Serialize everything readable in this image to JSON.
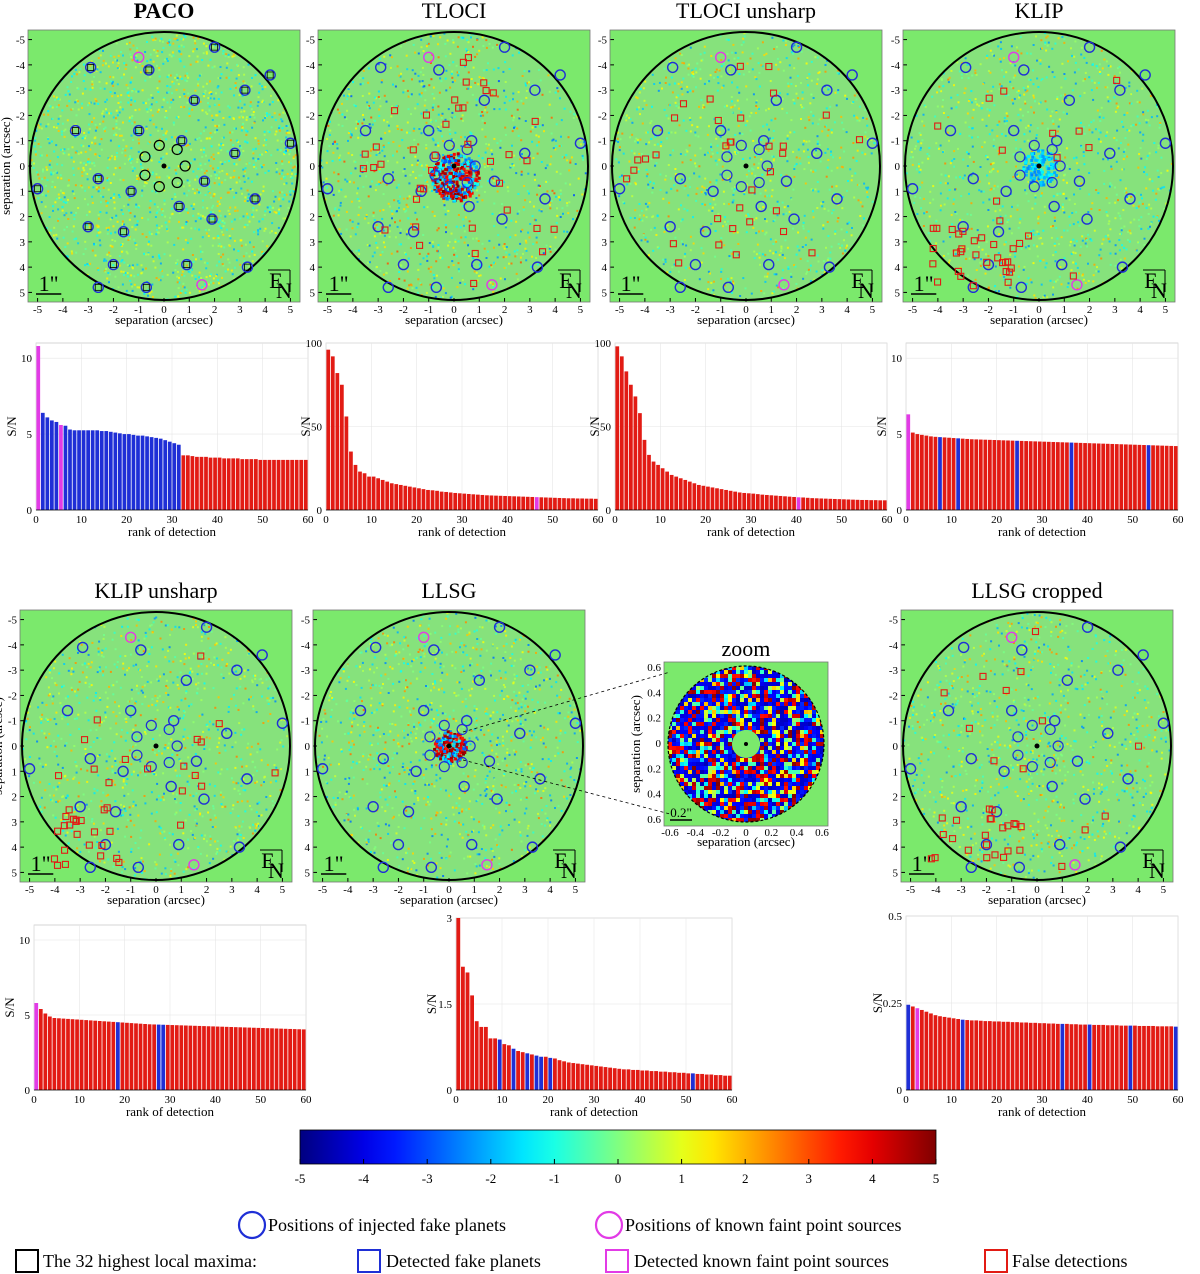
{
  "figure": {
    "legend": {
      "injected": "Positions of injected fake planets",
      "known": "Positions of known faint point sources",
      "maxima": "The 32 highest local maxima:",
      "detected_fake": "Detected fake planets",
      "detected_known": "Detected known faint point sources",
      "false_det": "False detections"
    },
    "colors": {
      "blue": "#1f2fd6",
      "magenta": "#e23be6",
      "red": "#e21b14",
      "map_bg": "#7be96c"
    },
    "zoom": {
      "title": "zoom",
      "scale_label": "0.2\"",
      "ticks": [
        "-0.6",
        "-0.4",
        "-0.2",
        "0",
        "0.2",
        "0.4",
        "0.6"
      ],
      "xlabel": "separation (arcsec)",
      "ylabel": "separation (arcsec)"
    },
    "map_common": {
      "ticks": [
        "-5",
        "-4",
        "-3",
        "-2",
        "-1",
        "0",
        "1",
        "2",
        "3",
        "4",
        "5"
      ],
      "xlabel": "separation (arcsec)",
      "ylabel": "separation (arcsec)",
      "scale_label": "1\"",
      "compass_e": "E",
      "compass_n": "N"
    }
  },
  "chart_data": [
    {
      "type": "image",
      "title": "PACO"
    },
    {
      "type": "image",
      "title": "TLOCI"
    },
    {
      "type": "image",
      "title": "TLOCI unsharp"
    },
    {
      "type": "image",
      "title": "KLIP"
    },
    {
      "type": "image",
      "title": "KLIP unsharp"
    },
    {
      "type": "image",
      "title": "LLSG"
    },
    {
      "type": "image",
      "title": "LLSG cropped"
    },
    {
      "type": "bar",
      "method": "PACO",
      "xlabel": "rank of detection",
      "ylabel": "S/N",
      "ylim": [
        0,
        11
      ],
      "yticks": [
        0,
        5,
        10
      ],
      "xticks": [
        0,
        10,
        20,
        30,
        40,
        50,
        60
      ],
      "values": [
        10.8,
        6.4,
        6.1,
        5.9,
        5.8,
        5.6,
        5.55,
        5.3,
        5.25,
        5.25,
        5.25,
        5.25,
        5.25,
        5.25,
        5.2,
        5.2,
        5.15,
        5.1,
        5.05,
        5.0,
        5.0,
        4.95,
        4.9,
        4.9,
        4.85,
        4.8,
        4.75,
        4.7,
        4.6,
        4.5,
        4.4,
        4.3,
        3.6,
        3.6,
        3.55,
        3.5,
        3.5,
        3.5,
        3.45,
        3.45,
        3.45,
        3.4,
        3.4,
        3.4,
        3.4,
        3.35,
        3.35,
        3.35,
        3.35,
        3.3,
        3.3,
        3.3,
        3.3,
        3.3,
        3.3,
        3.3,
        3.3,
        3.3,
        3.3,
        3.3
      ],
      "colors": [
        "m",
        "b",
        "b",
        "b",
        "b",
        "m",
        "b",
        "b",
        "b",
        "b",
        "b",
        "b",
        "b",
        "b",
        "b",
        "b",
        "b",
        "b",
        "b",
        "b",
        "b",
        "b",
        "b",
        "b",
        "b",
        "b",
        "b",
        "b",
        "b",
        "b",
        "b",
        "b",
        "r",
        "r",
        "r",
        "r",
        "r",
        "r",
        "r",
        "r",
        "r",
        "r",
        "r",
        "r",
        "r",
        "r",
        "r",
        "r",
        "r",
        "r",
        "r",
        "r",
        "r",
        "r",
        "r",
        "r",
        "r",
        "r",
        "r",
        "r"
      ]
    },
    {
      "type": "bar",
      "method": "TLOCI",
      "xlabel": "rank of detection",
      "ylabel": "S/N",
      "ylim": [
        0,
        100
      ],
      "yticks": [
        0,
        50,
        100
      ],
      "xticks": [
        0,
        10,
        20,
        30,
        40,
        50,
        60
      ],
      "values": [
        96,
        92,
        82,
        75,
        56,
        35,
        27,
        23,
        22,
        20,
        20,
        19,
        18,
        17,
        16,
        15.5,
        15,
        14.5,
        14,
        13.5,
        13,
        12.5,
        12,
        11.8,
        11.5,
        11,
        10.8,
        10.5,
        10.2,
        10,
        9.8,
        9.6,
        9.4,
        9.2,
        9,
        8.8,
        8.7,
        8.6,
        8.5,
        8.4,
        8.3,
        8.2,
        8.1,
        8,
        7.9,
        7.8,
        7.7,
        7.6,
        7.5,
        7.4,
        7.3,
        7.2,
        7.1,
        7.0,
        7.0,
        6.9,
        6.9,
        6.8,
        6.8,
        6.7
      ],
      "colors": [
        "r",
        "r",
        "r",
        "r",
        "r",
        "r",
        "r",
        "r",
        "r",
        "r",
        "r",
        "r",
        "r",
        "r",
        "r",
        "r",
        "r",
        "r",
        "r",
        "r",
        "r",
        "r",
        "r",
        "r",
        "r",
        "r",
        "r",
        "r",
        "r",
        "r",
        "r",
        "r",
        "r",
        "r",
        "r",
        "r",
        "r",
        "r",
        "r",
        "r",
        "r",
        "r",
        "r",
        "r",
        "r",
        "r",
        "m",
        "r",
        "r",
        "r",
        "r",
        "r",
        "r",
        "r",
        "r",
        "r",
        "r",
        "r",
        "r",
        "r"
      ]
    },
    {
      "type": "bar",
      "method": "TLOCI unsharp",
      "xlabel": "rank of detection",
      "ylabel": "S/N",
      "ylim": [
        0,
        100
      ],
      "yticks": [
        0,
        50,
        100
      ],
      "xticks": [
        0,
        10,
        20,
        30,
        40,
        50,
        60
      ],
      "values": [
        98,
        92,
        83,
        75,
        68,
        58,
        42,
        33,
        29,
        27,
        25,
        23,
        21,
        20,
        19,
        18,
        17,
        16,
        15,
        14.5,
        14,
        13.5,
        13,
        12.5,
        12,
        11.5,
        11,
        10.5,
        10.2,
        10,
        9.8,
        9.5,
        9.2,
        9,
        8.8,
        8.6,
        8.4,
        8.2,
        8,
        7.8,
        7.6,
        7.5,
        7.3,
        7.1,
        7,
        6.9,
        6.8,
        6.7,
        6.6,
        6.5,
        6.4,
        6.3,
        6.2,
        6.1,
        6.0,
        6.0,
        5.9,
        5.9,
        5.8,
        5.8
      ],
      "colors": [
        "r",
        "r",
        "r",
        "r",
        "r",
        "r",
        "r",
        "r",
        "r",
        "r",
        "r",
        "r",
        "r",
        "r",
        "r",
        "r",
        "r",
        "r",
        "r",
        "r",
        "r",
        "r",
        "r",
        "r",
        "r",
        "r",
        "r",
        "r",
        "r",
        "r",
        "r",
        "r",
        "r",
        "r",
        "r",
        "r",
        "r",
        "r",
        "r",
        "r",
        "m",
        "r",
        "r",
        "r",
        "r",
        "r",
        "r",
        "r",
        "r",
        "r",
        "r",
        "r",
        "r",
        "r",
        "r",
        "r",
        "r",
        "r",
        "r",
        "r"
      ]
    },
    {
      "type": "bar",
      "method": "KLIP",
      "xlabel": "rank of detection",
      "ylabel": "S/N",
      "ylim": [
        0,
        11
      ],
      "yticks": [
        0,
        5,
        10
      ],
      "xticks": [
        0,
        10,
        20,
        30,
        40,
        50,
        60
      ],
      "values": [
        6.3,
        5.1,
        5.0,
        4.95,
        4.9,
        4.85,
        4.82,
        4.8,
        4.78,
        4.76,
        4.74,
        4.72,
        4.7,
        4.68,
        4.66,
        4.65,
        4.64,
        4.63,
        4.62,
        4.61,
        4.6,
        4.59,
        4.58,
        4.57,
        4.56,
        4.55,
        4.54,
        4.53,
        4.52,
        4.51,
        4.5,
        4.49,
        4.48,
        4.47,
        4.46,
        4.45,
        4.44,
        4.43,
        4.42,
        4.41,
        4.4,
        4.39,
        4.38,
        4.37,
        4.36,
        4.35,
        4.34,
        4.33,
        4.32,
        4.31,
        4.3,
        4.29,
        4.28,
        4.27,
        4.26,
        4.25,
        4.24,
        4.23,
        4.22,
        4.21
      ],
      "colors": [
        "m",
        "r",
        "r",
        "r",
        "r",
        "r",
        "r",
        "b",
        "r",
        "r",
        "r",
        "b",
        "r",
        "r",
        "r",
        "r",
        "r",
        "r",
        "r",
        "r",
        "r",
        "r",
        "r",
        "r",
        "b",
        "r",
        "r",
        "r",
        "r",
        "r",
        "r",
        "r",
        "r",
        "r",
        "r",
        "r",
        "b",
        "r",
        "r",
        "r",
        "r",
        "r",
        "r",
        "r",
        "r",
        "r",
        "r",
        "r",
        "r",
        "r",
        "r",
        "r",
        "r",
        "b",
        "r",
        "r",
        "r",
        "r",
        "r",
        "r"
      ]
    },
    {
      "type": "bar",
      "method": "KLIP unsharp",
      "xlabel": "rank of detection",
      "ylabel": "S/N",
      "ylim": [
        0,
        11
      ],
      "yticks": [
        0,
        5,
        10
      ],
      "xticks": [
        0,
        10,
        20,
        30,
        40,
        50,
        60
      ],
      "values": [
        5.8,
        5.4,
        5.1,
        4.9,
        4.8,
        4.78,
        4.76,
        4.74,
        4.72,
        4.7,
        4.68,
        4.66,
        4.64,
        4.62,
        4.6,
        4.58,
        4.56,
        4.54,
        4.52,
        4.5,
        4.48,
        4.46,
        4.44,
        4.42,
        4.4,
        4.38,
        4.37,
        4.36,
        4.35,
        4.34,
        4.33,
        4.32,
        4.31,
        4.3,
        4.29,
        4.28,
        4.27,
        4.26,
        4.25,
        4.24,
        4.23,
        4.22,
        4.21,
        4.2,
        4.19,
        4.18,
        4.17,
        4.16,
        4.15,
        4.14,
        4.13,
        4.12,
        4.11,
        4.1,
        4.09,
        4.08,
        4.07,
        4.06,
        4.05,
        4.04
      ],
      "colors": [
        "m",
        "r",
        "r",
        "r",
        "r",
        "r",
        "r",
        "r",
        "r",
        "r",
        "r",
        "r",
        "r",
        "r",
        "r",
        "r",
        "r",
        "r",
        "b",
        "r",
        "r",
        "r",
        "r",
        "r",
        "r",
        "r",
        "r",
        "b",
        "b",
        "r",
        "r",
        "r",
        "r",
        "r",
        "r",
        "r",
        "r",
        "r",
        "r",
        "r",
        "r",
        "r",
        "r",
        "r",
        "r",
        "r",
        "r",
        "r",
        "r",
        "r",
        "r",
        "r",
        "r",
        "r",
        "r",
        "r",
        "r",
        "r",
        "r",
        "r"
      ]
    },
    {
      "type": "bar",
      "method": "LLSG",
      "xlabel": "rank of detection",
      "ylabel": "S/N",
      "ylim": [
        0,
        3
      ],
      "yticks": [
        0,
        1.5,
        3
      ],
      "xticks": [
        0,
        10,
        20,
        30,
        40,
        50,
        60
      ],
      "values": [
        3.0,
        2.15,
        2.05,
        1.65,
        1.2,
        1.1,
        1.1,
        0.9,
        0.9,
        0.88,
        0.8,
        0.78,
        0.72,
        0.68,
        0.66,
        0.64,
        0.62,
        0.6,
        0.58,
        0.58,
        0.56,
        0.55,
        0.52,
        0.5,
        0.48,
        0.47,
        0.46,
        0.45,
        0.44,
        0.43,
        0.42,
        0.41,
        0.4,
        0.39,
        0.38,
        0.37,
        0.36,
        0.36,
        0.35,
        0.35,
        0.34,
        0.34,
        0.33,
        0.33,
        0.32,
        0.32,
        0.31,
        0.31,
        0.3,
        0.3,
        0.29,
        0.29,
        0.28,
        0.28,
        0.27,
        0.27,
        0.26,
        0.26,
        0.25,
        0.25
      ],
      "colors": [
        "r",
        "r",
        "r",
        "r",
        "r",
        "r",
        "r",
        "r",
        "r",
        "b",
        "r",
        "r",
        "b",
        "r",
        "r",
        "b",
        "r",
        "b",
        "b",
        "r",
        "b",
        "r",
        "r",
        "r",
        "r",
        "r",
        "r",
        "r",
        "r",
        "r",
        "r",
        "r",
        "r",
        "r",
        "r",
        "r",
        "r",
        "r",
        "r",
        "r",
        "r",
        "r",
        "r",
        "r",
        "r",
        "r",
        "r",
        "r",
        "r",
        "r",
        "r",
        "b",
        "r",
        "r",
        "r",
        "r",
        "r",
        "r",
        "r",
        "r"
      ]
    },
    {
      "type": "bar",
      "method": "LLSG cropped",
      "xlabel": "rank of detection",
      "ylabel": "S/N",
      "ylim": [
        0,
        0.5
      ],
      "yticks": [
        0,
        0.25,
        0.5
      ],
      "xticks": [
        0,
        10,
        20,
        30,
        40,
        50,
        60
      ],
      "values": [
        0.245,
        0.24,
        0.235,
        0.23,
        0.225,
        0.22,
        0.215,
        0.212,
        0.21,
        0.208,
        0.206,
        0.204,
        0.202,
        0.201,
        0.2,
        0.2,
        0.199,
        0.198,
        0.198,
        0.197,
        0.197,
        0.196,
        0.196,
        0.195,
        0.195,
        0.194,
        0.194,
        0.193,
        0.193,
        0.192,
        0.192,
        0.191,
        0.191,
        0.19,
        0.19,
        0.19,
        0.189,
        0.189,
        0.188,
        0.188,
        0.188,
        0.187,
        0.187,
        0.187,
        0.186,
        0.186,
        0.186,
        0.185,
        0.185,
        0.185,
        0.185,
        0.184,
        0.184,
        0.184,
        0.184,
        0.183,
        0.183,
        0.183,
        0.183,
        0.182
      ],
      "colors": [
        "b",
        "r",
        "m",
        "r",
        "r",
        "r",
        "r",
        "r",
        "r",
        "r",
        "r",
        "r",
        "b",
        "r",
        "r",
        "r",
        "r",
        "r",
        "r",
        "r",
        "r",
        "r",
        "r",
        "r",
        "r",
        "r",
        "r",
        "r",
        "r",
        "r",
        "r",
        "r",
        "r",
        "r",
        "b",
        "r",
        "r",
        "r",
        "r",
        "r",
        "b",
        "r",
        "r",
        "r",
        "r",
        "r",
        "r",
        "r",
        "r",
        "b",
        "r",
        "r",
        "r",
        "r",
        "r",
        "r",
        "r",
        "r",
        "r",
        "b"
      ]
    },
    {
      "type": "colorbar",
      "ticks": [
        "-5",
        "-4",
        "-3",
        "-2",
        "-1",
        "0",
        "1",
        "2",
        "3",
        "4",
        "5"
      ],
      "range": [
        -5,
        5
      ],
      "colormap": "jet"
    }
  ]
}
